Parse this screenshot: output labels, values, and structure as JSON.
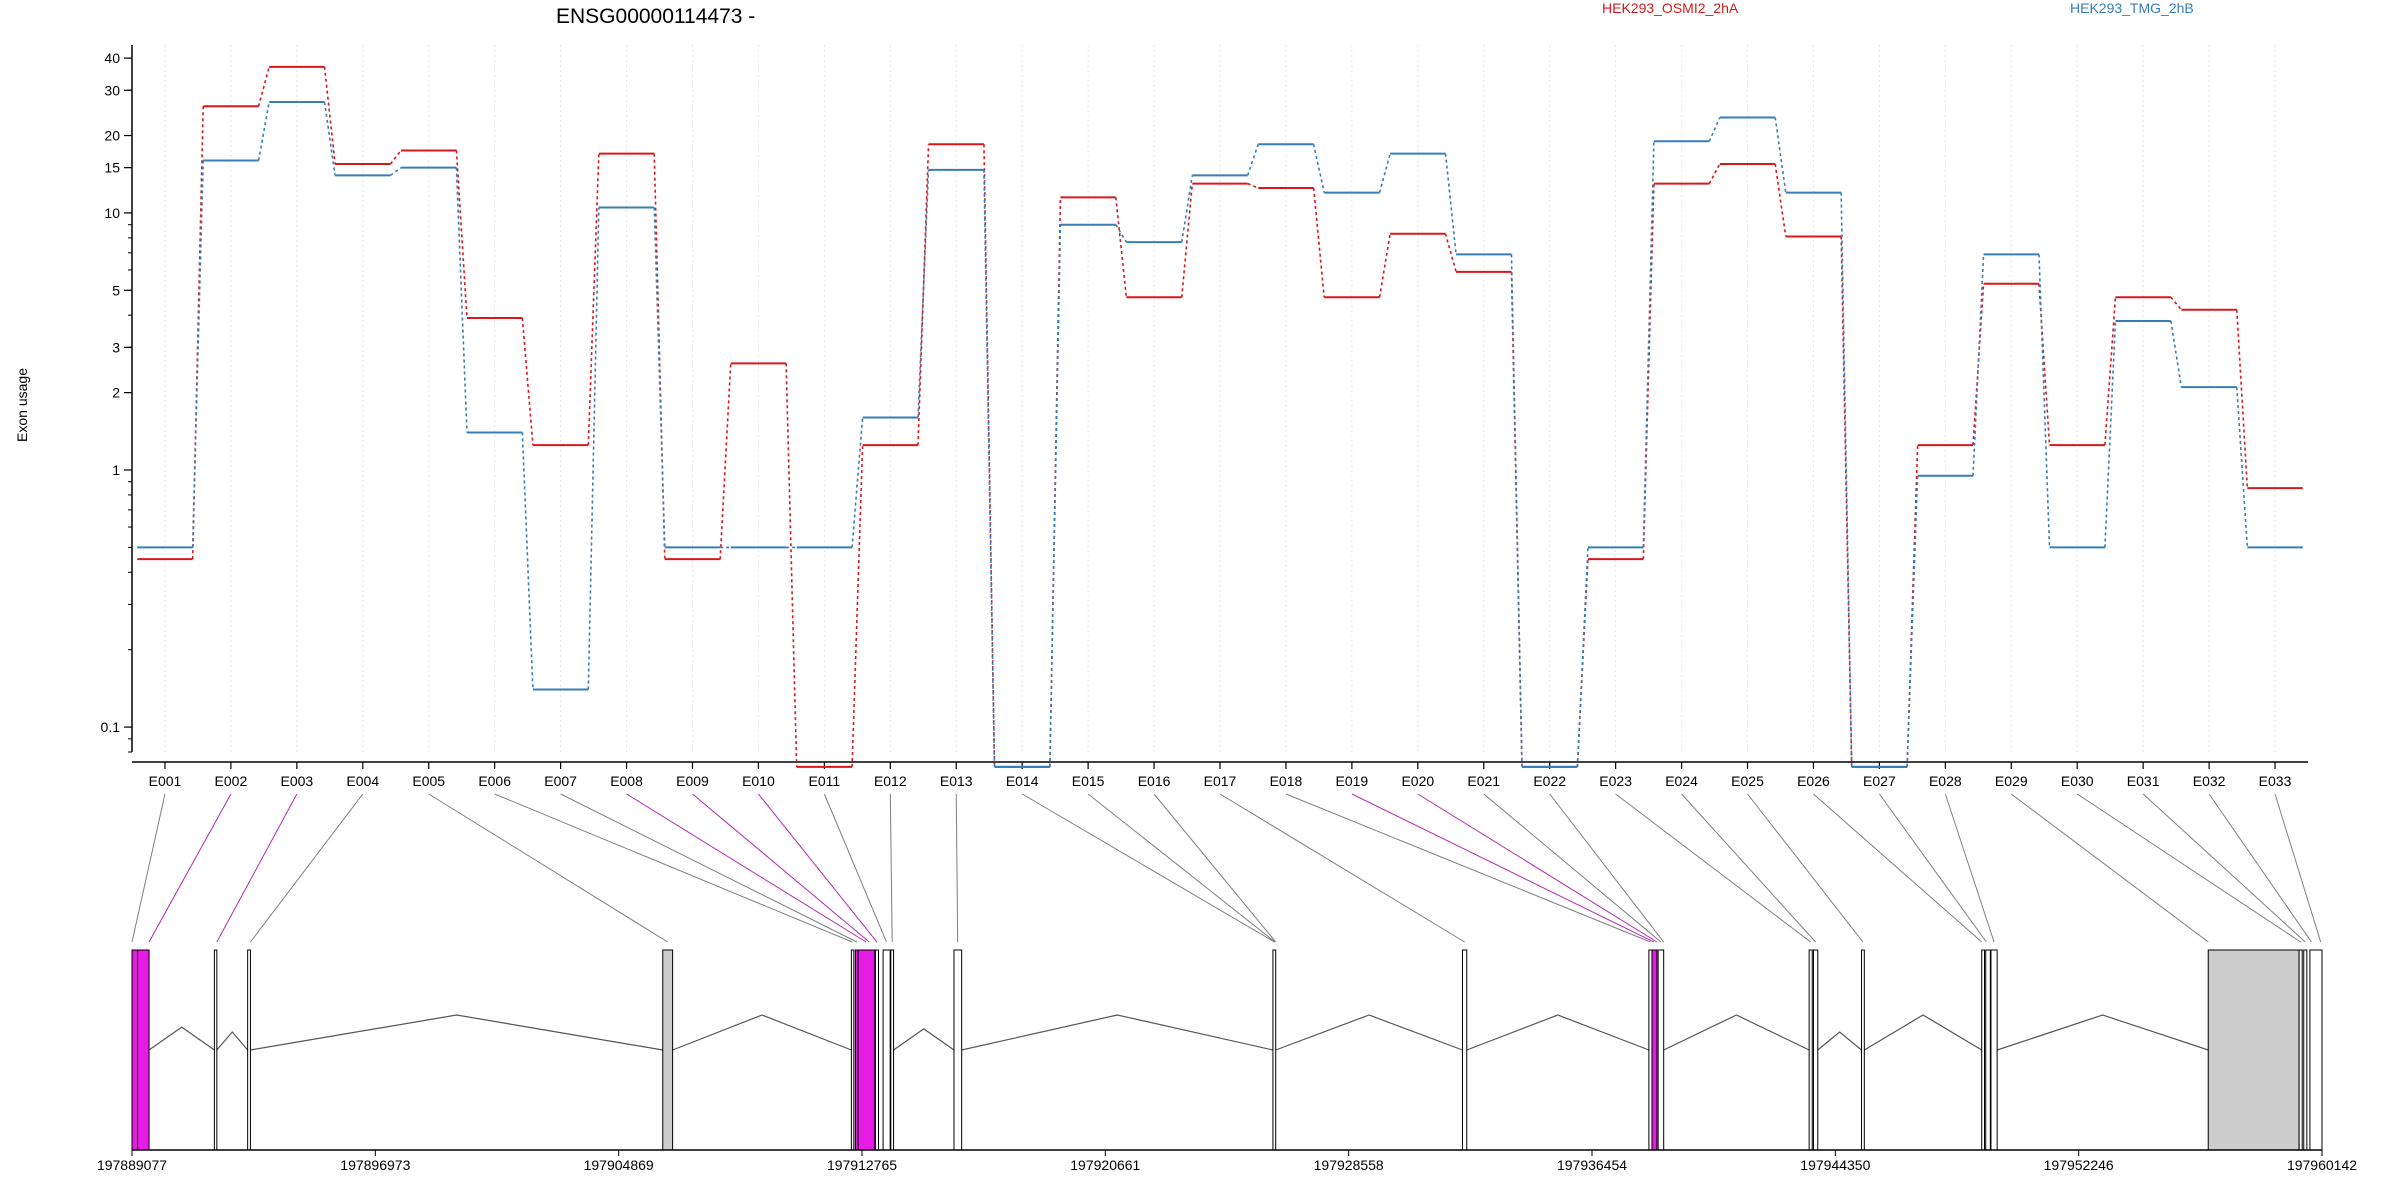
{
  "chart_data": {
    "type": "line",
    "title": "ENSG00000114473 -",
    "ylabel": "Exon usage",
    "xlabel": "",
    "y_scale": "log",
    "ylim": [
      0.08,
      45
    ],
    "y_ticks": [
      0.1,
      1,
      2,
      3,
      5,
      10,
      15,
      20,
      30,
      40
    ],
    "y_tick_labels": [
      "0.1",
      "1",
      "2",
      "3",
      "5",
      "10",
      "15",
      "20",
      "30",
      "40"
    ],
    "grid": "vertical dotted at each exon",
    "legend_placement": "top",
    "categories": [
      "E001",
      "E002",
      "E003",
      "E004",
      "E005",
      "E006",
      "E007",
      "E008",
      "E009",
      "E010",
      "E011",
      "E012",
      "E013",
      "E014",
      "E015",
      "E016",
      "E017",
      "E018",
      "E019",
      "E020",
      "E021",
      "E022",
      "E023",
      "E024",
      "E025",
      "E026",
      "E027",
      "E028",
      "E029",
      "E030",
      "E031",
      "E032",
      "E033"
    ],
    "series": [
      {
        "name": "HEK293_OSMI2_2hA",
        "color": "#d7191c",
        "style": "solid steps, dotted transitions",
        "values": [
          0.45,
          26,
          37,
          15.5,
          17.5,
          3.9,
          1.25,
          17,
          0.45,
          2.6,
          0.07,
          1.25,
          18.5,
          0.07,
          11.5,
          4.7,
          13,
          12.5,
          4.7,
          8.3,
          5.9,
          0.07,
          0.45,
          13,
          15.5,
          8.1,
          0.07,
          1.25,
          5.3,
          1.25,
          4.7,
          4.2,
          0.85
        ]
      },
      {
        "name": "HEK293_TMG_2hB",
        "color": "#377eb8",
        "style": "solid steps, dotted transitions",
        "values": [
          0.5,
          16,
          27,
          14,
          15,
          1.4,
          0.14,
          10.5,
          0.5,
          0.5,
          0.5,
          1.6,
          14.7,
          0.07,
          9,
          7.7,
          14,
          18.5,
          12,
          17,
          6.9,
          0.07,
          0.5,
          19,
          23.5,
          12,
          0.07,
          0.95,
          6.9,
          0.5,
          3.8,
          2.1,
          0.5
        ]
      }
    ],
    "genomic_axis": {
      "labels": [
        "197889077",
        "197896973",
        "197904869",
        "197912765",
        "197920661",
        "197928558",
        "197936454",
        "197944350",
        "197952246",
        "197960142"
      ],
      "start": 197889077,
      "end": 197960142
    },
    "gene_model": {
      "exons": [
        {
          "start": 197889077,
          "end": 197889260,
          "color": "#e61ce6"
        },
        {
          "start": 197889260,
          "end": 197889630,
          "color": "#e61ce6"
        },
        {
          "start": 197891750,
          "end": 197891830,
          "color": "#ffffff"
        },
        {
          "start": 197892830,
          "end": 197892920,
          "color": "#ffffff"
        },
        {
          "start": 197906300,
          "end": 197906620,
          "color": "#cccccc"
        },
        {
          "start": 197912420,
          "end": 197912500,
          "color": "#ffffff"
        },
        {
          "start": 197912550,
          "end": 197912640,
          "color": "#e61ce6"
        },
        {
          "start": 197912640,
          "end": 197913180,
          "color": "#e61ce6"
        },
        {
          "start": 197913200,
          "end": 197913300,
          "color": "#ffffff"
        },
        {
          "start": 197913450,
          "end": 197913680,
          "color": "#ffffff"
        },
        {
          "start": 197913700,
          "end": 197913790,
          "color": "#ffffff"
        },
        {
          "start": 197915750,
          "end": 197916000,
          "color": "#ffffff"
        },
        {
          "start": 197926100,
          "end": 197926190,
          "color": "#ffffff"
        },
        {
          "start": 197932250,
          "end": 197932390,
          "color": "#ffffff"
        },
        {
          "start": 197938300,
          "end": 197938400,
          "color": "#ffffff"
        },
        {
          "start": 197938400,
          "end": 197938560,
          "color": "#e61ce6"
        },
        {
          "start": 197938600,
          "end": 197938780,
          "color": "#ffffff"
        },
        {
          "start": 197943500,
          "end": 197943600,
          "color": "#ffffff"
        },
        {
          "start": 197943640,
          "end": 197943780,
          "color": "#ffffff"
        },
        {
          "start": 197945200,
          "end": 197945290,
          "color": "#ffffff"
        },
        {
          "start": 197949100,
          "end": 197949190,
          "color": "#ffffff"
        },
        {
          "start": 197949230,
          "end": 197949380,
          "color": "#ffffff"
        },
        {
          "start": 197949400,
          "end": 197949600,
          "color": "#ffffff"
        },
        {
          "start": 197956450,
          "end": 197959400,
          "color": "#cccccc"
        },
        {
          "start": 197959400,
          "end": 197959500,
          "color": "#ffffff"
        },
        {
          "start": 197959550,
          "end": 197959650,
          "color": "#ffffff"
        },
        {
          "start": 197959750,
          "end": 197960142,
          "color": "#ffffff"
        }
      ],
      "exon_anchor_positions": [
        197889077,
        197889630,
        197891830,
        197892920,
        197906460,
        197912450,
        197912600,
        197912900,
        197913000,
        197913250,
        197913560,
        197913745,
        197915870,
        197926150,
        197926170,
        197926190,
        197932320,
        197938350,
        197938460,
        197938560,
        197938690,
        197938780,
        197943550,
        197943710,
        197945245,
        197949100,
        197949250,
        197949500,
        197956450,
        197959450,
        197959600,
        197959800,
        197960100
      ],
      "highlight_exons": [
        "E002",
        "E003",
        "E008",
        "E009",
        "E010",
        "E019",
        "E020"
      ],
      "line_colors": {
        "normal": "#7f7f7f",
        "highlight": "#b32ab3"
      }
    }
  }
}
